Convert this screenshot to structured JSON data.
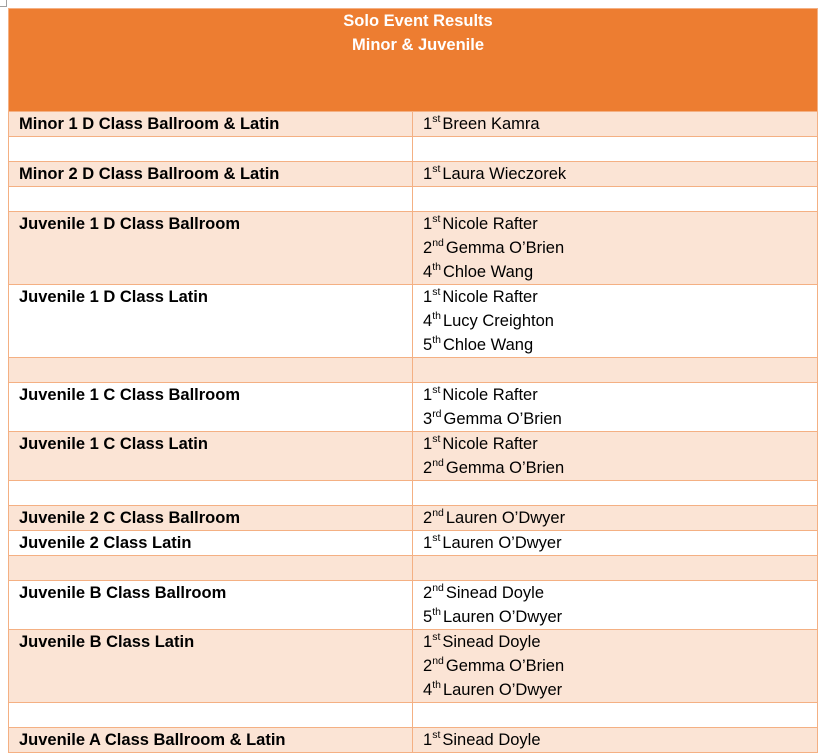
{
  "document": {
    "title_line1": "Solo Event Results",
    "title_line2": "Minor & Juvenile",
    "colors": {
      "header_bg": "#ED7D31",
      "band_bg": "#FBE4D5",
      "border": "#F4B083",
      "title_text": "#FFFFFF"
    }
  },
  "rows": [
    {
      "event": "Minor 1 D Class Ballroom & Latin",
      "placings": [
        {
          "pos": "1",
          "suf": "st",
          "name": "Breen Kamra"
        }
      ]
    },
    {
      "event": "",
      "placings": []
    },
    {
      "event": "Minor 2 D Class Ballroom & Latin",
      "placings": [
        {
          "pos": "1",
          "suf": "st",
          "name": "Laura Wieczorek"
        }
      ]
    },
    {
      "event": "",
      "placings": []
    },
    {
      "event": "Juvenile 1 D Class Ballroom",
      "placings": [
        {
          "pos": "1",
          "suf": "st",
          "name": "Nicole Rafter"
        },
        {
          "pos": "2",
          "suf": "nd",
          "name": "Gemma O’Brien"
        },
        {
          "pos": "4",
          "suf": "th",
          "name": "Chloe Wang"
        }
      ]
    },
    {
      "event": "Juvenile 1 D Class Latin",
      "placings": [
        {
          "pos": "1",
          "suf": "st",
          "name": "Nicole Rafter"
        },
        {
          "pos": "4",
          "suf": "th",
          "name": "Lucy Creighton"
        },
        {
          "pos": "5",
          "suf": "th",
          "name": "Chloe Wang"
        }
      ]
    },
    {
      "event": "",
      "placings": []
    },
    {
      "event": "Juvenile 1 C Class Ballroom",
      "placings": [
        {
          "pos": "1",
          "suf": "st",
          "name": "Nicole Rafter"
        },
        {
          "pos": "3",
          "suf": "rd",
          "name": "Gemma O’Brien"
        }
      ]
    },
    {
      "event": "Juvenile 1 C Class Latin",
      "placings": [
        {
          "pos": "1",
          "suf": "st",
          "name": "Nicole Rafter"
        },
        {
          "pos": "2",
          "suf": "nd",
          "name": "Gemma O’Brien"
        }
      ]
    },
    {
      "event": "",
      "placings": []
    },
    {
      "event": "Juvenile 2 C Class Ballroom",
      "placings": [
        {
          "pos": "2",
          "suf": "nd",
          "name": "Lauren O’Dwyer"
        }
      ]
    },
    {
      "event": "Juvenile 2 Class Latin",
      "placings": [
        {
          "pos": "1",
          "suf": "st",
          "name": "Lauren O’Dwyer"
        }
      ]
    },
    {
      "event": "",
      "placings": []
    },
    {
      "event": "Juvenile B Class Ballroom",
      "placings": [
        {
          "pos": "2",
          "suf": "nd",
          "name": "Sinead Doyle"
        },
        {
          "pos": "5",
          "suf": "th",
          "name": "Lauren O’Dwyer"
        }
      ]
    },
    {
      "event": "Juvenile B Class Latin",
      "placings": [
        {
          "pos": "1",
          "suf": "st",
          "name": "Sinead Doyle"
        },
        {
          "pos": "2",
          "suf": "nd",
          "name": "Gemma O’Brien"
        },
        {
          "pos": "4",
          "suf": "th",
          "name": "Lauren O’Dwyer"
        }
      ]
    },
    {
      "event": "",
      "placings": []
    },
    {
      "event": "Juvenile A Class Ballroom & Latin",
      "placings": [
        {
          "pos": "1",
          "suf": "st",
          "name": "Sinead Doyle"
        }
      ]
    }
  ]
}
